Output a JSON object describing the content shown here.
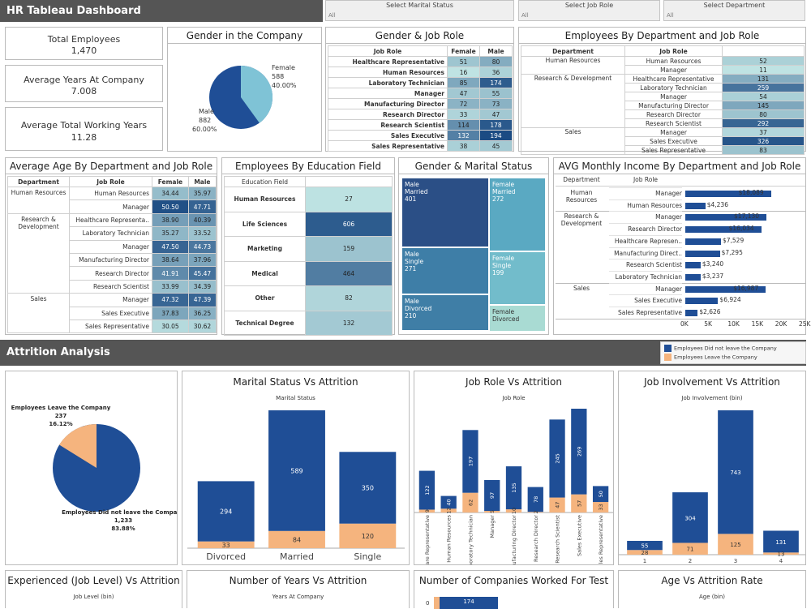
{
  "header": {
    "title": "HR Tableau Dashboard"
  },
  "filters": [
    {
      "label": "Select Marital Status",
      "value": "All"
    },
    {
      "label": "Select Job Role",
      "value": "All"
    },
    {
      "label": "Select Department",
      "value": "All"
    }
  ],
  "kpis": [
    {
      "label": "Total Employees",
      "value": "1,470"
    },
    {
      "label": "Average Years At Company",
      "value": "7.008"
    },
    {
      "label": "Average Total Working Years",
      "value": "11.28"
    }
  ],
  "gender_company": {
    "title": "Gender in the Company",
    "female_label": "Female",
    "female_count": "588",
    "female_pct": "40.00%",
    "male_label": "Male",
    "male_count": "882",
    "male_pct": "60.00%"
  },
  "gender_job": {
    "title": "Gender & Job Role",
    "headers": [
      "Job Role",
      "Female",
      "Male"
    ],
    "rows": [
      [
        "Healthcare Representative",
        "51",
        "80"
      ],
      [
        "Human Resources",
        "16",
        "36"
      ],
      [
        "Laboratory Technician",
        "85",
        "174"
      ],
      [
        "Manager",
        "47",
        "55"
      ],
      [
        "Manufacturing Director",
        "72",
        "73"
      ],
      [
        "Research Director",
        "33",
        "47"
      ],
      [
        "Research Scientist",
        "114",
        "178"
      ],
      [
        "Sales Executive",
        "132",
        "194"
      ],
      [
        "Sales Representative",
        "38",
        "45"
      ]
    ]
  },
  "dept_job": {
    "title": "Employees By Department and Job Role",
    "headers": [
      "Department",
      "Job Role"
    ],
    "groups": [
      {
        "dept": "Human Resources",
        "rows": [
          [
            "Human Resources",
            "52"
          ],
          [
            "Manager",
            "11"
          ]
        ]
      },
      {
        "dept": "Research & Development",
        "rows": [
          [
            "Healthcare Representative",
            "131"
          ],
          [
            "Laboratory Technician",
            "259"
          ],
          [
            "Manager",
            "54"
          ],
          [
            "Manufacturing Director",
            "145"
          ],
          [
            "Research Director",
            "80"
          ],
          [
            "Research Scientist",
            "292"
          ]
        ]
      },
      {
        "dept": "Sales",
        "rows": [
          [
            "Manager",
            "37"
          ],
          [
            "Sales Executive",
            "326"
          ],
          [
            "Sales Representative",
            "83"
          ]
        ]
      }
    ]
  },
  "avg_age": {
    "title": "Average Age By Department and Job Role",
    "headers": [
      "Department",
      "Job Role",
      "Female",
      "Male"
    ],
    "groups": [
      {
        "dept": "Human Resources",
        "rows": [
          [
            "Human Resources",
            "34.44",
            "35.97"
          ],
          [
            "Manager",
            "50.50",
            "47.71"
          ]
        ]
      },
      {
        "dept": "Research & Development",
        "rows": [
          [
            "Healthcare Representa..",
            "38.90",
            "40.39"
          ],
          [
            "Laboratory Technician",
            "35.27",
            "33.52"
          ],
          [
            "Manager",
            "47.50",
            "44.73"
          ],
          [
            "Manufacturing Director",
            "38.64",
            "37.96"
          ],
          [
            "Research Director",
            "41.91",
            "45.47"
          ],
          [
            "Research Scientist",
            "33.99",
            "34.39"
          ]
        ]
      },
      {
        "dept": "Sales",
        "rows": [
          [
            "Manager",
            "47.32",
            "47.39"
          ],
          [
            "Sales Executive",
            "37.83",
            "36.25"
          ],
          [
            "Sales Representative",
            "30.05",
            "30.62"
          ]
        ]
      }
    ]
  },
  "education": {
    "title": "Employees By Education Field",
    "header": "Education Field",
    "rows": [
      [
        "Human Resources",
        "27"
      ],
      [
        "Life Sciences",
        "606"
      ],
      [
        "Marketing",
        "159"
      ],
      [
        "Medical",
        "464"
      ],
      [
        "Other",
        "82"
      ],
      [
        "Technical Degree",
        "132"
      ]
    ]
  },
  "gender_marital": {
    "title": "Gender & Marital Status",
    "cells": [
      {
        "label": "Male\nMarried",
        "value": "401"
      },
      {
        "label": "Female\nMarried",
        "value": "272"
      },
      {
        "label": "Male\nSingle",
        "value": "271"
      },
      {
        "label": "Female\nSingle",
        "value": "199"
      },
      {
        "label": "Male\nDivorced",
        "value": "210"
      },
      {
        "label": "Female\nDivorced",
        "value": ""
      }
    ]
  },
  "income": {
    "title": "AVG Monthly Income By Department and Job Role",
    "headers": [
      "Department",
      "Job Role"
    ],
    "groups": [
      {
        "dept": "Human Resources",
        "rows": [
          [
            "Manager",
            18089,
            "$18,089"
          ],
          [
            "Human Resources",
            4236,
            "$4,236"
          ]
        ]
      },
      {
        "dept": "Research & Development",
        "rows": [
          [
            "Manager",
            17130,
            "$17,130"
          ],
          [
            "Research Director",
            16034,
            "$16,034"
          ],
          [
            "Healthcare Represen..",
            7529,
            "$7,529"
          ],
          [
            "Manufacturing Direct..",
            7295,
            "$7,295"
          ],
          [
            "Research Scientist",
            3240,
            "$3,240"
          ],
          [
            "Laboratory Technician",
            3237,
            "$3,237"
          ]
        ]
      },
      {
        "dept": "Sales",
        "rows": [
          [
            "Manager",
            16987,
            "$16,987"
          ],
          [
            "Sales Executive",
            6924,
            "$6,924"
          ],
          [
            "Sales Representative",
            2626,
            "$2,626"
          ]
        ]
      }
    ],
    "axis": [
      "0K",
      "5K",
      "10K",
      "15K",
      "20K",
      "25K"
    ]
  },
  "attrition": {
    "section_title": "Attrition Analysis",
    "legend": {
      "stay": "Employees Did not leave the Company",
      "leave": "Employees Leave the Company",
      "stay_color": "#1f4e96",
      "leave_color": "#f5b47e"
    },
    "pie": {
      "leave_label": "Employees Leave the Company",
      "leave_count": "237",
      "leave_pct": "16.12%",
      "stay_label": "Employees Did not leave the Company",
      "stay_count": "1,233",
      "stay_pct": "83.88%"
    }
  },
  "marital_attr": {
    "title": "Marital Status Vs Attrition",
    "axis": "Marital Status"
  },
  "jobrole_attr": {
    "title": "Job Role Vs Attrition",
    "axis": "Job Role"
  },
  "involve_attr": {
    "title": "Job Involvement Vs Attrition",
    "axis": "Job Involvement (bin)"
  },
  "bottom": [
    {
      "title": "Experienced (Job Level) Vs Attrition",
      "axis": "Job Level (bin)"
    },
    {
      "title": "Number of Years Vs Attrition",
      "axis": "Years At Company"
    },
    {
      "title": "Number of Companies Worked For Test",
      "axis": "",
      "first_label": "0",
      "first_value": "174"
    },
    {
      "title": "Age Vs Attrition Rate",
      "axis": "Age (bin)"
    }
  ],
  "chart_data": [
    {
      "type": "bar",
      "title": "Marital Status Vs Attrition",
      "xlabel": "Marital Status",
      "categories": [
        "Divorced",
        "Married",
        "Single"
      ],
      "series": [
        {
          "name": "Employees Did not leave the Company",
          "values": [
            294,
            589,
            350
          ]
        },
        {
          "name": "Employees Leave the Company",
          "values": [
            33,
            84,
            120
          ]
        }
      ]
    },
    {
      "type": "bar",
      "title": "Job Role Vs Attrition",
      "xlabel": "Job Role",
      "categories": [
        "Healthcare Representative",
        "Human Resources",
        "Laboratory Technician",
        "Manager",
        "Manufacturing Director",
        "Research Director",
        "Research Scientist",
        "Sales Executive",
        "Sales Representative"
      ],
      "series": [
        {
          "name": "Employees Did not leave the Company",
          "values": [
            122,
            40,
            197,
            97,
            135,
            78,
            245,
            269,
            50
          ]
        },
        {
          "name": "Employees Leave the Company",
          "values": [
            9,
            12,
            62,
            5,
            10,
            2,
            47,
            57,
            33
          ]
        }
      ]
    },
    {
      "type": "bar",
      "title": "Job Involvement Vs Attrition",
      "xlabel": "Job Involvement (bin)",
      "categories": [
        "1",
        "2",
        "3",
        "4"
      ],
      "series": [
        {
          "name": "Employees Did not leave the Company",
          "values": [
            55,
            304,
            743,
            131
          ]
        },
        {
          "name": "Employees Leave the Company",
          "values": [
            28,
            71,
            125,
            13
          ]
        }
      ]
    }
  ]
}
